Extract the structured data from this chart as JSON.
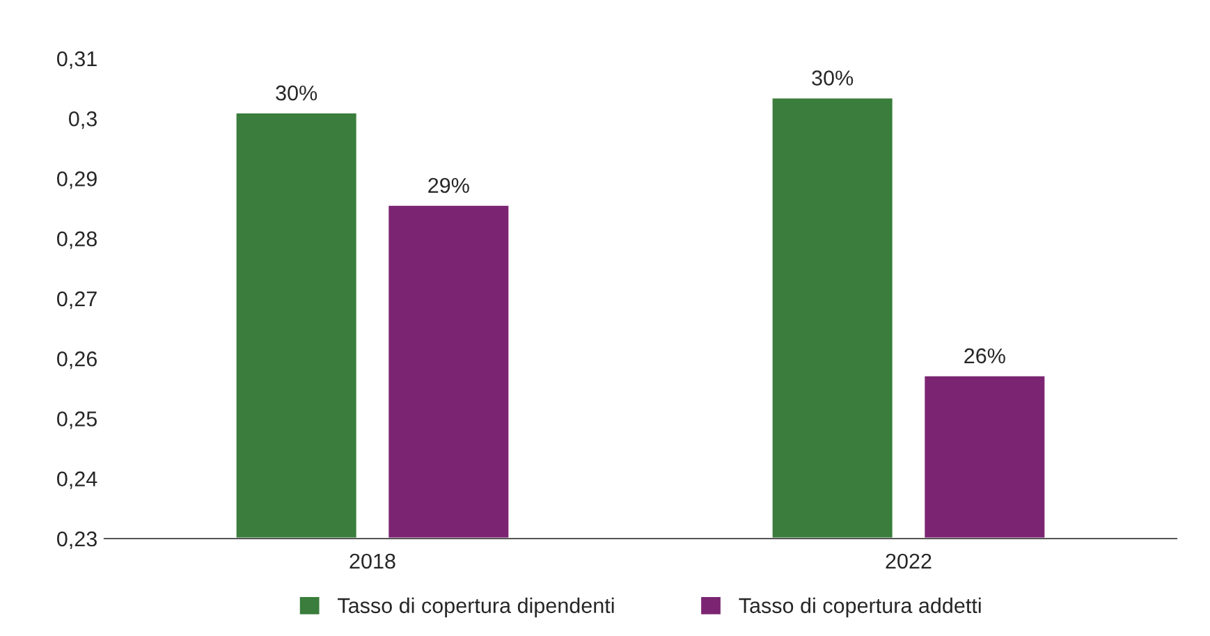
{
  "chart_data": {
    "type": "bar",
    "categories": [
      "2018",
      "2022"
    ],
    "series": [
      {
        "name": "Tasso di copertura dipendenti",
        "color": "#3a7d3c",
        "values": [
          0.301,
          0.3035
        ],
        "value_labels": [
          "30%",
          "30%"
        ]
      },
      {
        "name": "Tasso di copertura addetti",
        "color": "#7b2572",
        "values": [
          0.2856,
          0.2572
        ],
        "value_labels": [
          "29%",
          "26%"
        ]
      }
    ],
    "ylim": [
      0.23,
      0.31
    ],
    "yticks": [
      {
        "value": 0.23,
        "label": "0,23"
      },
      {
        "value": 0.24,
        "label": "0,24"
      },
      {
        "value": 0.25,
        "label": "0,25"
      },
      {
        "value": 0.26,
        "label": "0,26"
      },
      {
        "value": 0.27,
        "label": "0,27"
      },
      {
        "value": 0.28,
        "label": "0,28"
      },
      {
        "value": 0.29,
        "label": "0,29"
      },
      {
        "value": 0.3,
        "label": "0,3"
      },
      {
        "value": 0.31,
        "label": "0,31"
      }
    ],
    "grid": false,
    "legend": "bottom"
  }
}
